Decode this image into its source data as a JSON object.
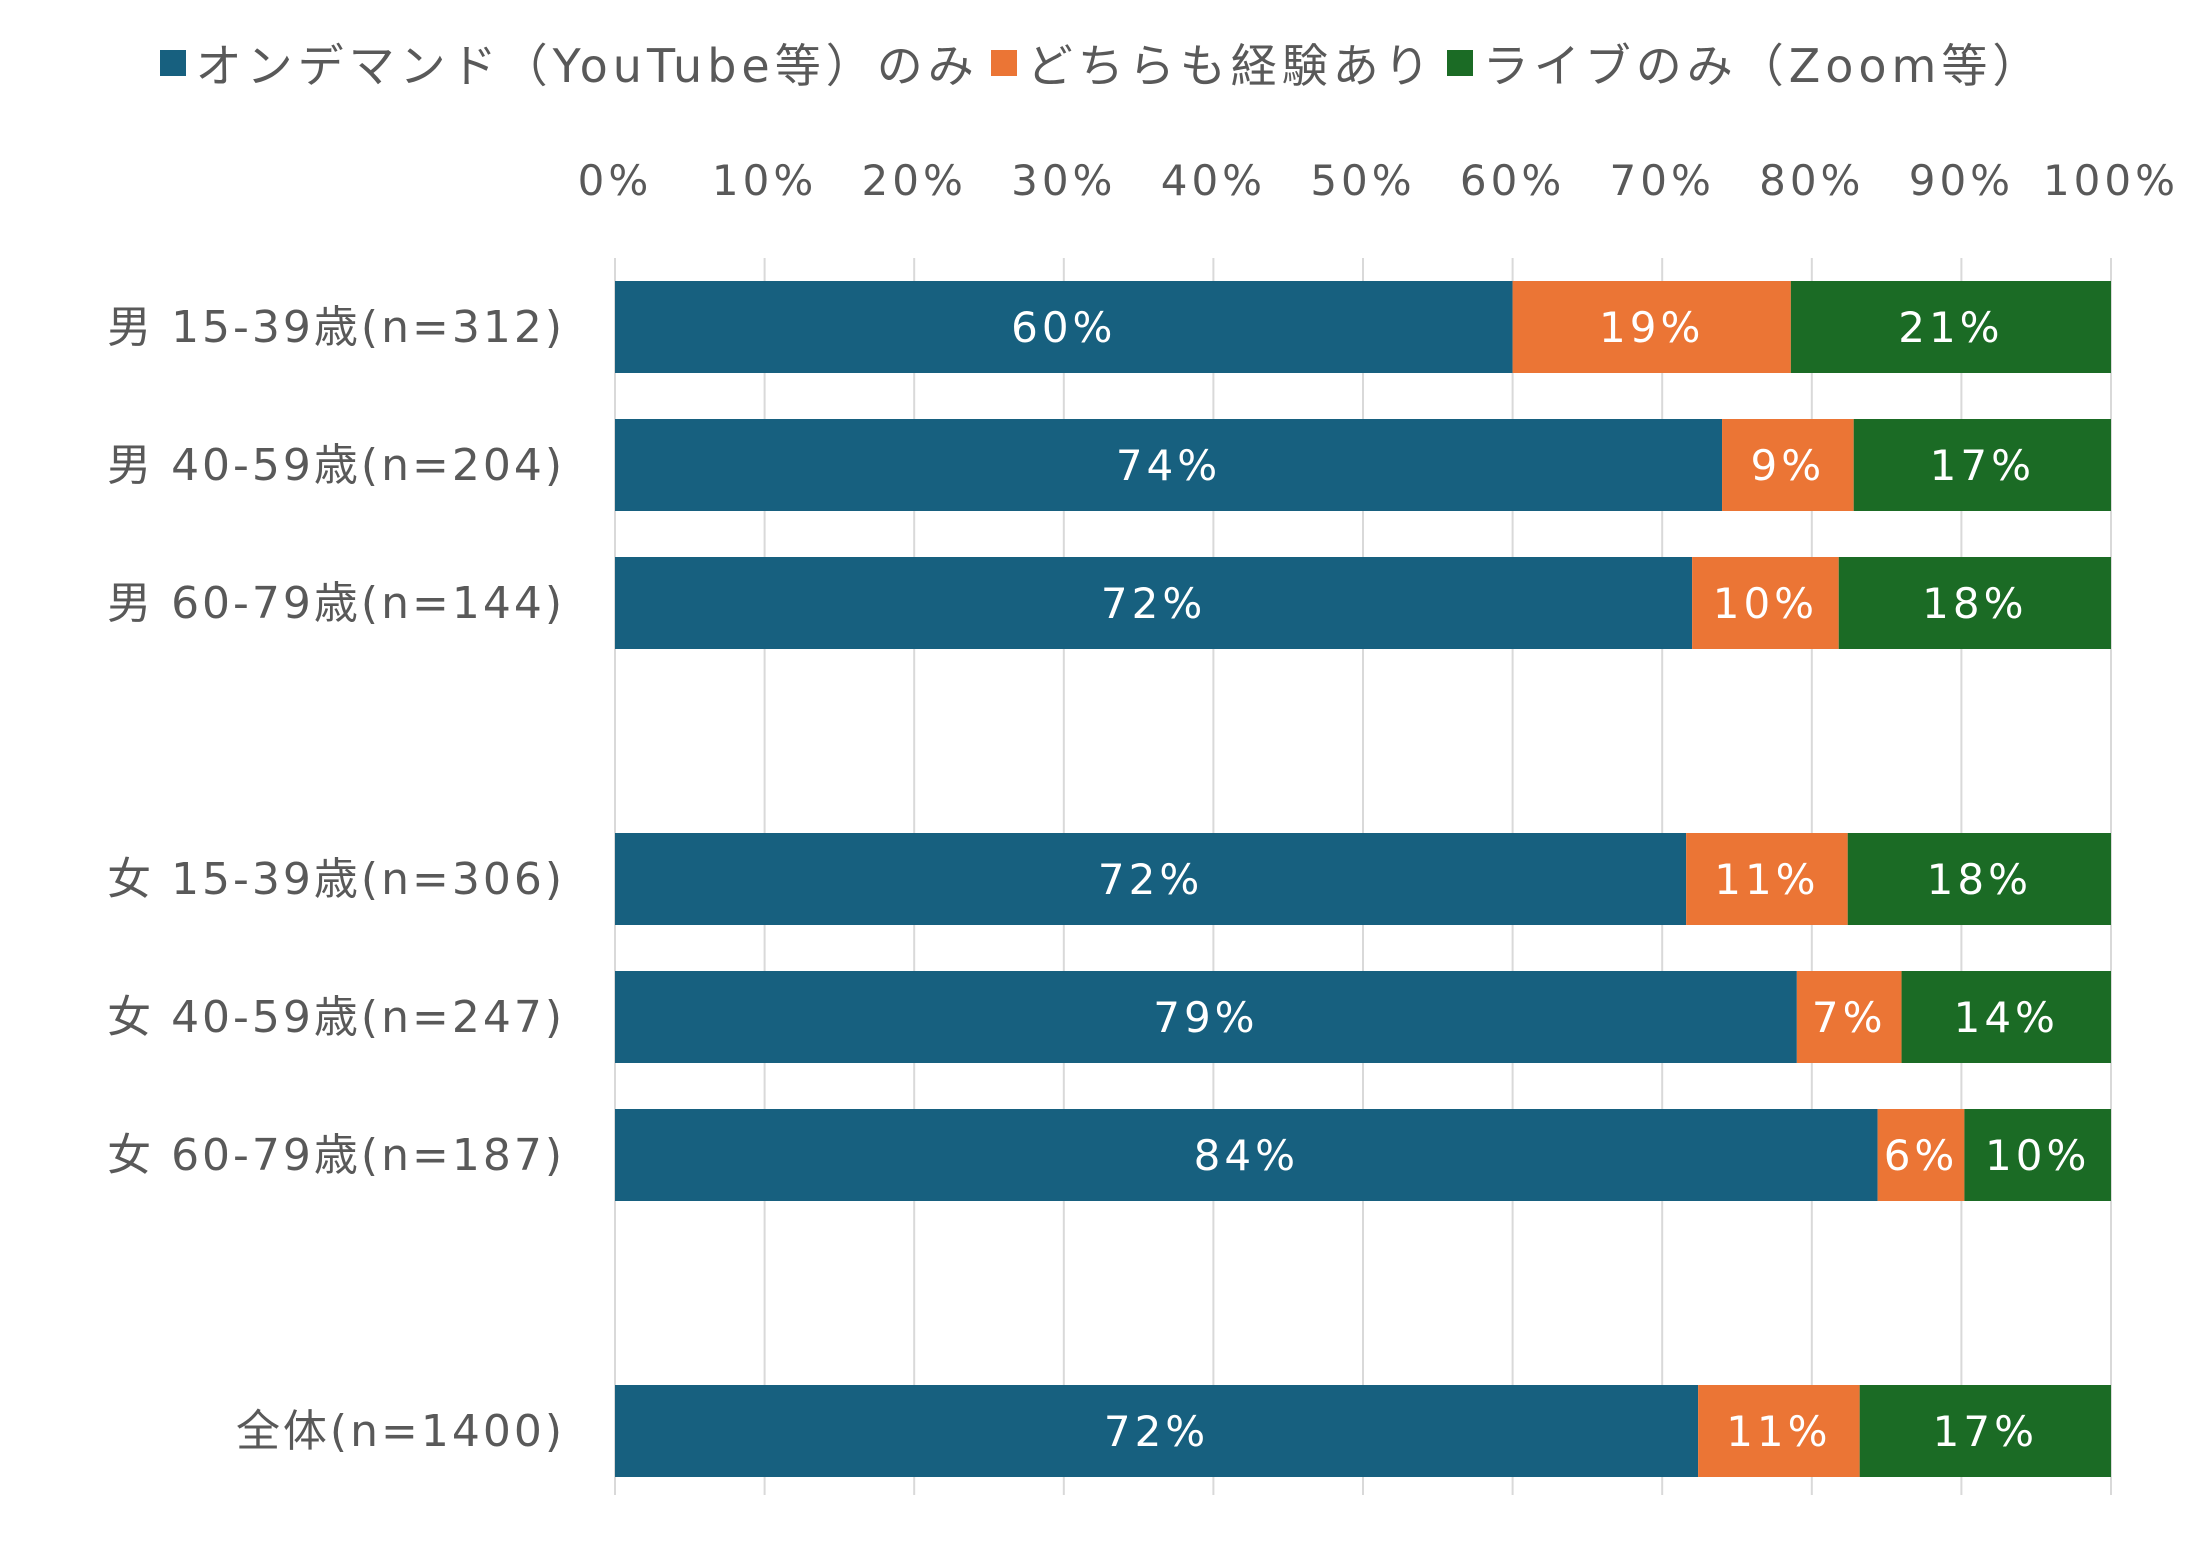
{
  "chart_data": {
    "type": "bar",
    "orientation": "horizontal",
    "stacked": true,
    "percent": true,
    "title": "",
    "xlabel": "",
    "ylabel": "",
    "xlim": [
      0,
      100
    ],
    "x_ticks": [
      "0%",
      "10%",
      "20%",
      "30%",
      "40%",
      "50%",
      "60%",
      "70%",
      "80%",
      "90%",
      "100%"
    ],
    "grid": true,
    "legend_position": "top",
    "categories": [
      "男 15-39歳(n=312)",
      "男 40-59歳(n=204)",
      "男 60-79歳(n=144)",
      "",
      "女 15-39歳(n=306)",
      "女 40-59歳(n=247)",
      "女 60-79歳(n=187)",
      "",
      "全体(n=1400)"
    ],
    "series": [
      {
        "name": "オンデマンド（YouTube等）のみ",
        "color": "#17607f",
        "values": [
          60,
          74,
          72,
          null,
          71.6,
          79,
          84.4,
          null,
          72.4
        ],
        "labels": [
          "60%",
          "74%",
          "72%",
          "",
          "72%",
          "79%",
          "84%",
          "",
          "72%"
        ]
      },
      {
        "name": "どちらも経験あり",
        "color": "#eb7535",
        "values": [
          18.6,
          8.8,
          9.8,
          null,
          10.8,
          7,
          5.8,
          null,
          10.8
        ],
        "labels": [
          "19%",
          "9%",
          "10%",
          "",
          "11%",
          "7%",
          "6%",
          "",
          "11%"
        ]
      },
      {
        "name": "ライブのみ（Zoom等）",
        "color": "#1b6b25",
        "values": [
          21.4,
          17.2,
          18.2,
          null,
          17.6,
          14,
          9.8,
          null,
          16.8
        ],
        "labels": [
          "21%",
          "17%",
          "18%",
          "",
          "18%",
          "14%",
          "10%",
          "",
          "17%"
        ]
      }
    ]
  }
}
